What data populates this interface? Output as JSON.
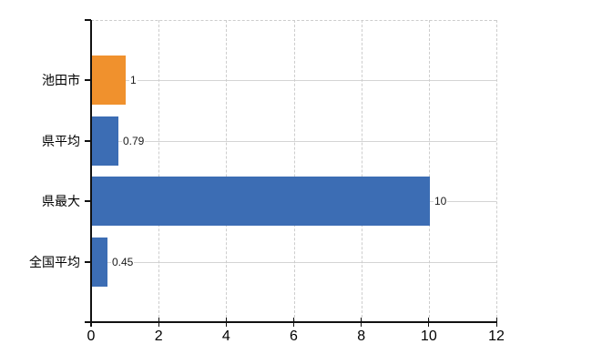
{
  "chart_data": {
    "type": "bar",
    "orientation": "horizontal",
    "categories": [
      "池田市",
      "県平均",
      "県最大",
      "全国平均"
    ],
    "values": [
      1,
      0.79,
      10,
      0.45
    ],
    "value_labels": [
      "1",
      "0.79",
      "10",
      "0.45"
    ],
    "bar_colors": [
      "#F0912D",
      "#3C6DB4",
      "#3C6DB4",
      "#3C6DB4"
    ],
    "xlim": [
      0,
      12
    ],
    "x_ticks": [
      0,
      2,
      4,
      6,
      8,
      10,
      12
    ],
    "grid": "on",
    "legend": "none",
    "colors": {
      "orange": "#F0912D",
      "blue": "#3C6DB4",
      "grid_solid": "#d4d4d4",
      "grid_dashed": "#cdcdcd",
      "axis": "#111111",
      "text": "#000000",
      "background": "#ffffff"
    }
  }
}
